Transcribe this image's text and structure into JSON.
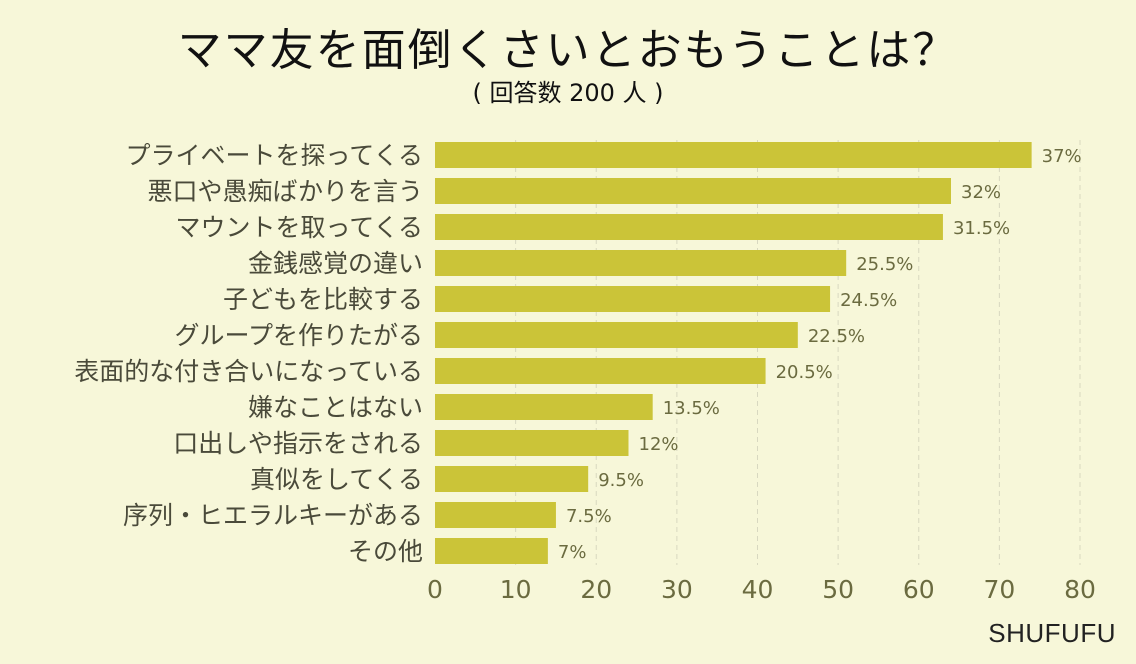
{
  "chart_data": {
    "type": "bar",
    "orientation": "horizontal",
    "title": "ママ友を面倒くさいとおもうことは？",
    "subtitle": "( 回答数 200 人 )",
    "categories": [
      "プライベートを探ってくる",
      "悪口や愚痴ばかりを言う",
      "マウントを取ってくる",
      "金銭感覚の違い",
      "子どもを比較する",
      "グループを作りたがる",
      "表面的な付き合いになっている",
      "嫌なことはない",
      "口出しや指示をされる",
      "真似をしてくる",
      "序列・ヒエラルキーがある",
      "その他"
    ],
    "values": [
      37,
      32,
      31.5,
      25.5,
      24.5,
      22.5,
      20.5,
      13.5,
      12,
      9.5,
      7.5,
      7
    ],
    "value_labels": [
      "37%",
      "32%",
      "31.5%",
      "25.5%",
      "24.5%",
      "22.5%",
      "20.5%",
      "13.5%",
      "12%",
      "9.5%",
      "7.5%",
      "7%"
    ],
    "xlim": [
      0,
      80
    ],
    "xticks": [
      0,
      10,
      20,
      30,
      40,
      50,
      60,
      70,
      80
    ],
    "tick_labels": [
      "0",
      "10",
      "20",
      "30",
      "40",
      "50",
      "60",
      "70",
      "80"
    ],
    "axis_scale": 2,
    "grid": "vertical dashed",
    "bar_color": "#cbc438",
    "grid_color": "#d8d8c0"
  },
  "source": "SHUFUFU"
}
